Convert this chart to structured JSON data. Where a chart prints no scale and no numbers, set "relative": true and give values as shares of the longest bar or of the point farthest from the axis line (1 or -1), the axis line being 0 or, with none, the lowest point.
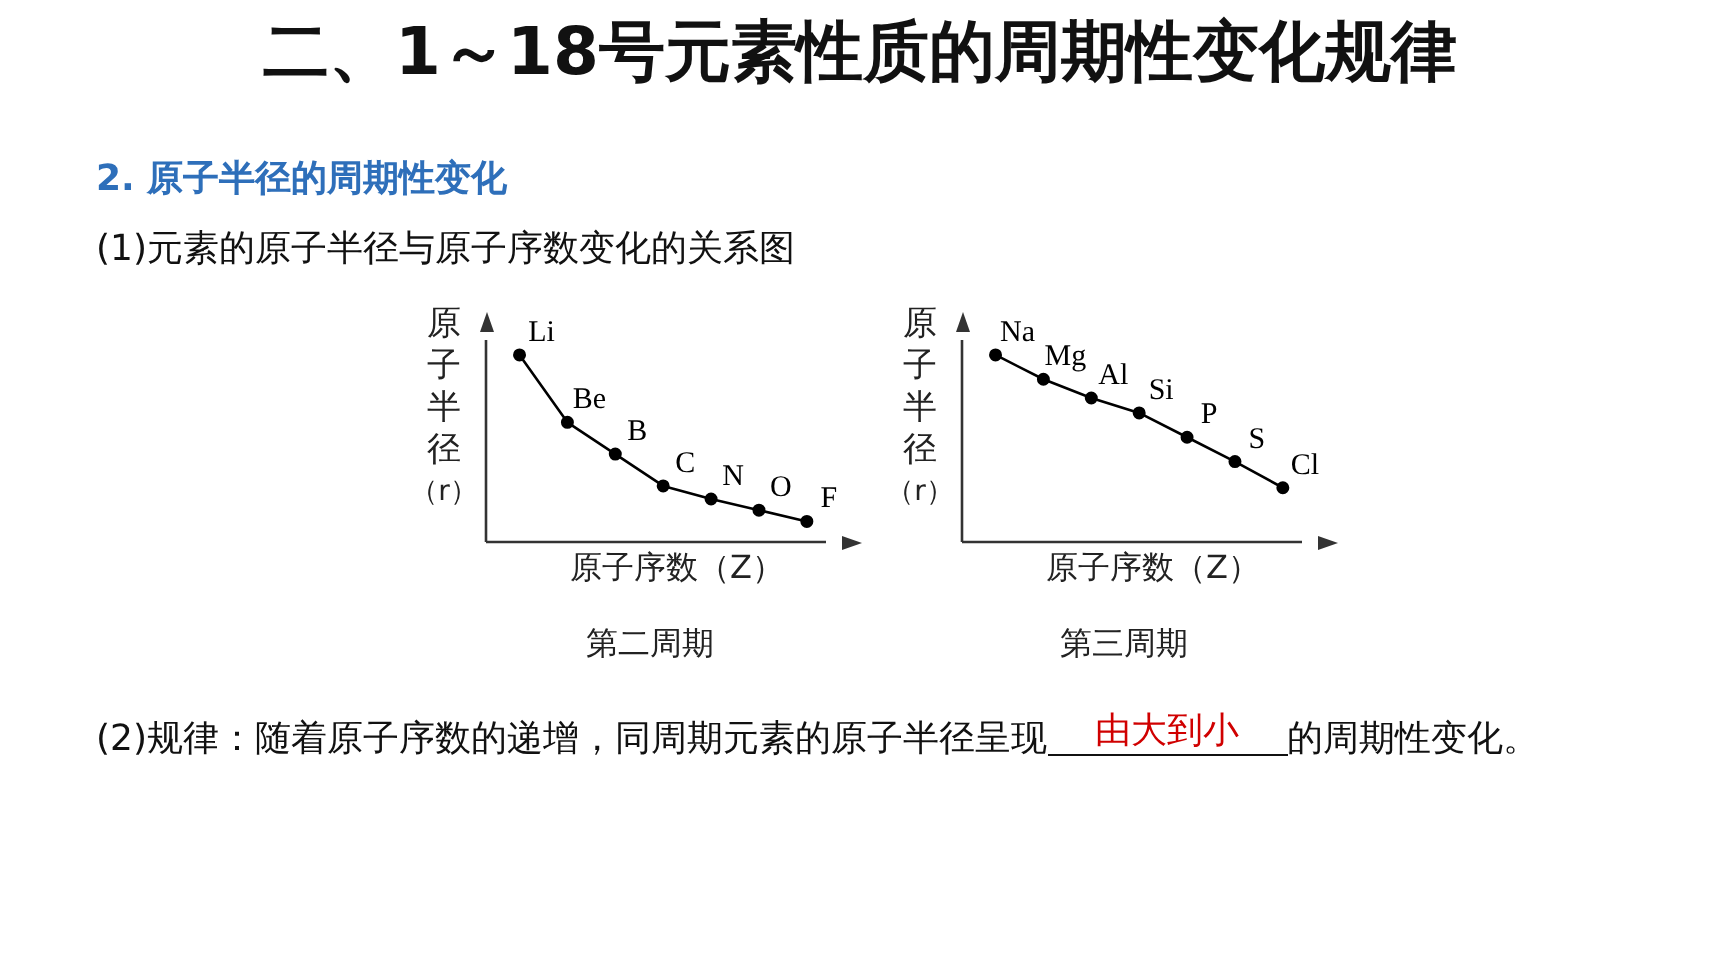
{
  "chart_data": [
    {
      "type": "line",
      "title": "二、1～18号元素性质的周期性变化规律",
      "subtitle": "2. 原子半径的周期性变化",
      "xlabel": "原子序数（Z）",
      "ylabel": "原子半径（r）",
      "relative": true,
      "categories": [
        null,
        null,
        null,
        null,
        null,
        null,
        null
      ],
      "values": [
        1,
        0.64,
        0.47,
        0.3,
        0.23,
        0.17,
        0.11
      ],
      "color": "#000000",
      "marker": "circle",
      "annotations": [
        "(1)元素的原子半径与原子序数变化的关系图",
        "第二周期",
        "Li",
        "Be",
        "B",
        "C",
        "N",
        "O",
        "F"
      ]
    },
    {
      "type": "line",
      "xlabel": "原子序数（Z）",
      "ylabel": "原子半径（r）",
      "relative": true,
      "categories": [
        null,
        null,
        null,
        null,
        null,
        null,
        null
      ],
      "values": [
        1,
        0.87,
        0.77,
        0.69,
        0.56,
        0.43,
        0.29
      ],
      "color": "#000000",
      "marker": "circle",
      "annotations": [
        "第三周期",
        "(2)规律：随着原子序数的递增，同周期元素的原子半径呈现",
        "由大到小",
        "的周期性变化。",
        "Na",
        "Mg",
        "Al",
        "Si",
        "P",
        "S",
        "Cl"
      ]
    }
  ]
}
